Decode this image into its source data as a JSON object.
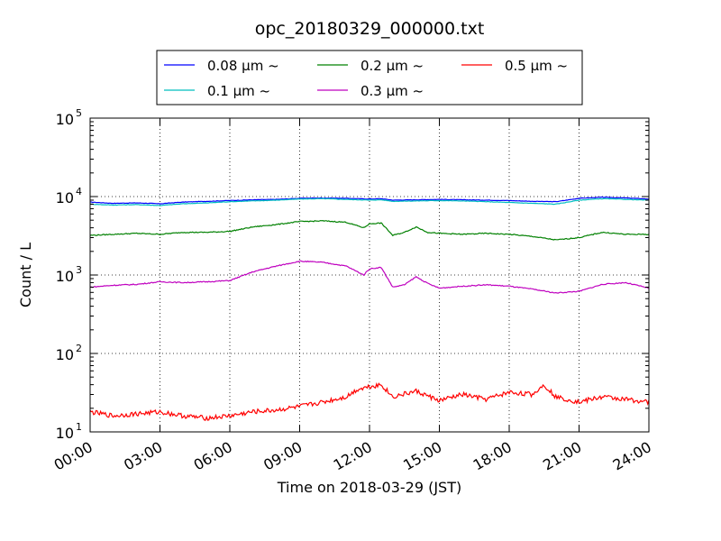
{
  "chart_data": {
    "type": "line",
    "title": "opc_20180329_000000.txt",
    "xlabel": "Time on 2018-03-29 (JST)",
    "ylabel": "Count / L",
    "y_scale": "log",
    "ylim": [
      10,
      100000
    ],
    "xlim": [
      "2018-03-29 00:00",
      "2018-03-30 00:00"
    ],
    "grid": true,
    "legend_position": "top-center",
    "x_ticks": [
      "00:00",
      "03:00",
      "06:00",
      "09:00",
      "12:00",
      "15:00",
      "18:00",
      "21:00",
      "24:00"
    ],
    "y_ticks": [
      {
        "base": "10",
        "exp": "1"
      },
      {
        "base": "10",
        "exp": "2"
      },
      {
        "base": "10",
        "exp": "3"
      },
      {
        "base": "10",
        "exp": "4"
      },
      {
        "base": "10",
        "exp": "5"
      }
    ],
    "series": [
      {
        "name": "0.08 μm ~",
        "color": "#0000ff",
        "x": [
          "00:00",
          "01:00",
          "02:00",
          "03:00",
          "04:00",
          "05:00",
          "06:00",
          "07:00",
          "08:00",
          "09:00",
          "10:00",
          "11:00",
          "12:00",
          "12:30",
          "13:00",
          "14:00",
          "15:00",
          "16:00",
          "17:00",
          "18:00",
          "19:00",
          "20:00",
          "21:00",
          "22:00",
          "23:00",
          "24:00"
        ],
        "values": [
          8500,
          8200,
          8300,
          8100,
          8500,
          8700,
          8900,
          9100,
          9200,
          9500,
          9600,
          9500,
          9300,
          9400,
          9000,
          9100,
          9200,
          9100,
          9000,
          8900,
          8700,
          8600,
          9500,
          9800,
          9600,
          9300
        ]
      },
      {
        "name": "0.1 μm ~",
        "color": "#00bfbf",
        "x": [
          "00:00",
          "01:00",
          "02:00",
          "03:00",
          "04:00",
          "05:00",
          "06:00",
          "07:00",
          "08:00",
          "09:00",
          "10:00",
          "11:00",
          "12:00",
          "12:30",
          "13:00",
          "14:00",
          "15:00",
          "16:00",
          "17:00",
          "18:00",
          "19:00",
          "20:00",
          "21:00",
          "22:00",
          "23:00",
          "24:00"
        ],
        "values": [
          8000,
          7800,
          7900,
          7700,
          8100,
          8300,
          8600,
          8800,
          9000,
          9300,
          9400,
          9200,
          9000,
          9100,
          8700,
          8800,
          8900,
          8800,
          8600,
          8400,
          8200,
          8000,
          9000,
          9400,
          9200,
          9000
        ]
      },
      {
        "name": "0.2 μm ~",
        "color": "#008000",
        "x": [
          "00:00",
          "01:00",
          "02:00",
          "03:00",
          "04:00",
          "05:00",
          "06:00",
          "07:00",
          "08:00",
          "09:00",
          "10:00",
          "11:00",
          "11:45",
          "12:00",
          "12:30",
          "13:00",
          "13:30",
          "14:00",
          "14:30",
          "15:00",
          "16:00",
          "17:00",
          "18:00",
          "19:00",
          "20:00",
          "21:00",
          "22:00",
          "23:00",
          "24:00"
        ],
        "values": [
          3200,
          3300,
          3400,
          3300,
          3500,
          3500,
          3600,
          4100,
          4400,
          4800,
          4900,
          4700,
          4000,
          4500,
          4600,
          3200,
          3500,
          4100,
          3500,
          3400,
          3300,
          3400,
          3300,
          3100,
          2800,
          3000,
          3500,
          3300,
          3300
        ]
      },
      {
        "name": "0.3 μm ~",
        "color": "#bf00bf",
        "x": [
          "00:00",
          "01:00",
          "02:00",
          "03:00",
          "04:00",
          "05:00",
          "06:00",
          "07:00",
          "08:00",
          "09:00",
          "10:00",
          "11:00",
          "11:45",
          "12:00",
          "12:30",
          "13:00",
          "13:30",
          "14:00",
          "14:30",
          "15:00",
          "16:00",
          "17:00",
          "18:00",
          "19:00",
          "20:00",
          "21:00",
          "22:00",
          "23:00",
          "24:00"
        ],
        "values": [
          700,
          740,
          760,
          820,
          800,
          820,
          850,
          1100,
          1300,
          1500,
          1450,
          1300,
          1000,
          1200,
          1250,
          700,
          750,
          950,
          780,
          680,
          720,
          750,
          720,
          660,
          590,
          620,
          760,
          800,
          680
        ]
      },
      {
        "name": "0.5 μm ~",
        "color": "#ff0000",
        "x": [
          "00:00",
          "01:00",
          "02:00",
          "03:00",
          "04:00",
          "05:00",
          "06:00",
          "07:00",
          "08:00",
          "09:00",
          "10:00",
          "11:00",
          "11:30",
          "12:00",
          "12:30",
          "13:00",
          "14:00",
          "15:00",
          "16:00",
          "17:00",
          "18:00",
          "19:00",
          "19:30",
          "20:00",
          "21:00",
          "22:00",
          "23:00",
          "24:00"
        ],
        "values": [
          18,
          16,
          17,
          18,
          16,
          15,
          16,
          18,
          19,
          21,
          24,
          28,
          35,
          38,
          40,
          28,
          33,
          25,
          30,
          26,
          32,
          30,
          40,
          28,
          24,
          28,
          26,
          24
        ]
      }
    ]
  }
}
